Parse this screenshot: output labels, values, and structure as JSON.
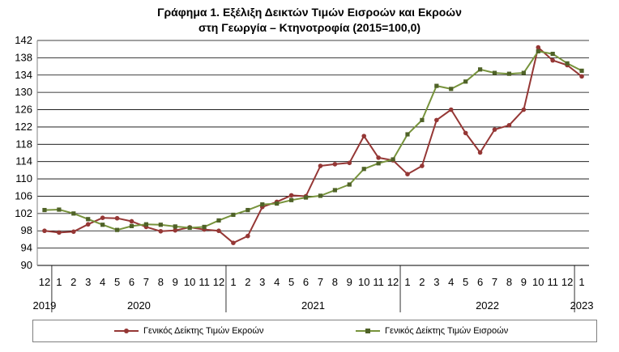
{
  "chart_data": {
    "type": "line",
    "title": "Γράφημα 1. Εξέλιξη Δεικτών Τιμών Εισροών και Εκροών",
    "subtitle": "στη Γεωργία – Κτηνοτροφία (2015=100,0)",
    "ylim": [
      90,
      142
    ],
    "yticks": [
      "90",
      "94",
      "98",
      "102",
      "106",
      "110",
      "114",
      "118",
      "122",
      "126",
      "130",
      "134",
      "138",
      "142"
    ],
    "month_labels": [
      "12",
      "1",
      "2",
      "3",
      "4",
      "5",
      "6",
      "7",
      "8",
      "9",
      "10",
      "11",
      "12",
      "1",
      "2",
      "3",
      "4",
      "5",
      "6",
      "7",
      "8",
      "9",
      "10",
      "11",
      "12",
      "1",
      "2",
      "3",
      "4",
      "5",
      "6",
      "7",
      "8",
      "9",
      "10",
      "11",
      "12",
      "1"
    ],
    "year_labels": [
      "2019",
      "2020",
      "2021",
      "2022",
      "2023"
    ],
    "grid": true,
    "legend_position": "bottom",
    "series": [
      {
        "name": "Γενικός Δείκτης Τιμών Εκροών",
        "color": "#953735",
        "marker": "circle",
        "values": [
          98.0,
          97.6,
          97.8,
          99.5,
          101.0,
          100.9,
          100.2,
          98.9,
          97.9,
          98.1,
          98.8,
          98.3,
          98.0,
          95.2,
          96.8,
          103.5,
          104.7,
          106.2,
          106.0,
          113.0,
          113.4,
          113.7,
          119.9,
          114.9,
          114.3,
          111.1,
          113.0,
          123.6,
          126.0,
          120.6,
          116.1,
          121.4,
          122.4,
          126.0,
          140.4,
          137.4,
          136.3,
          133.7
        ]
      },
      {
        "name": "Γενικός Δείκτης Τιμών Εισροών",
        "color": "#77933c",
        "marker": "square",
        "values": [
          102.8,
          102.9,
          102.0,
          100.7,
          99.4,
          98.2,
          99.1,
          99.5,
          99.4,
          99.0,
          98.7,
          98.9,
          100.4,
          101.7,
          102.8,
          104.1,
          104.3,
          105.1,
          105.7,
          106.1,
          107.4,
          108.7,
          112.3,
          113.6,
          114.5,
          120.3,
          123.6,
          131.5,
          130.8,
          132.5,
          135.3,
          134.5,
          134.3,
          134.5,
          139.5,
          138.9,
          136.7,
          135.0
        ]
      }
    ]
  }
}
